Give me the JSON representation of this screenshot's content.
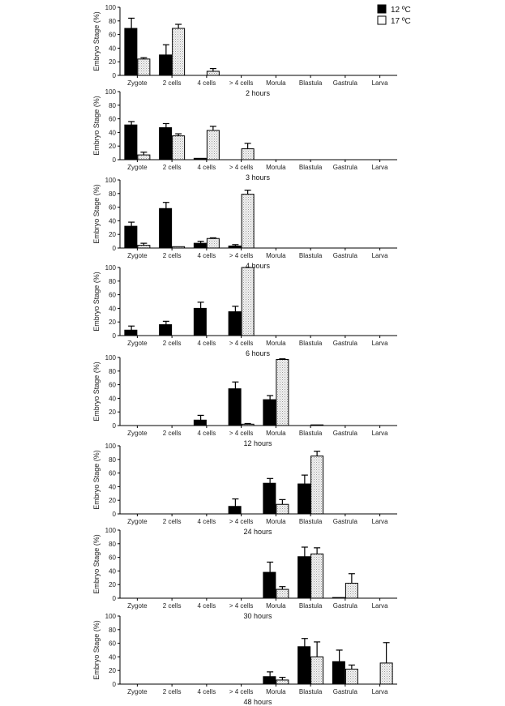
{
  "legend": {
    "series_12": "12 ºC",
    "series_17": "17 ºC"
  },
  "chart_data": {
    "type": "bar",
    "ylabel": "Embryo Stage (%)",
    "ylim": [
      0,
      100
    ],
    "yticks": [
      0,
      20,
      40,
      60,
      80,
      100
    ],
    "categories": [
      "Zygote",
      "2 cells",
      "4 cells",
      "> 4 cells",
      "Morula",
      "Blastula",
      "Gastrula",
      "Larva"
    ],
    "legend_position": "top-right",
    "series_colors": {
      "12 ºC": "#000000",
      "17 ºC": "#e6e6e6"
    },
    "panels": [
      {
        "title": "2 hours",
        "series": [
          {
            "name": "12 ºC",
            "values": [
              69,
              30,
              0,
              0,
              0,
              0,
              0,
              0
            ],
            "errors": [
              15,
              15,
              0,
              0,
              0,
              0,
              0,
              0
            ]
          },
          {
            "name": "17 ºC",
            "values": [
              24,
              69,
              6,
              0,
              0,
              0,
              0,
              0
            ],
            "errors": [
              2,
              6,
              4,
              0,
              0,
              0,
              0,
              0
            ]
          }
        ]
      },
      {
        "title": "3 hours",
        "series": [
          {
            "name": "12 ºC",
            "values": [
              51,
              47,
              2,
              0,
              0,
              0,
              0,
              0
            ],
            "errors": [
              5,
              6,
              0,
              0,
              0,
              0,
              0,
              0
            ]
          },
          {
            "name": "17 ºC",
            "values": [
              7,
              35,
              43,
              16,
              0,
              0,
              0,
              0
            ],
            "errors": [
              4,
              3,
              6,
              8,
              0,
              0,
              0,
              0
            ]
          }
        ]
      },
      {
        "title": "4 hours",
        "series": [
          {
            "name": "12 ºC",
            "values": [
              32,
              58,
              7,
              3,
              0,
              0,
              0,
              0
            ],
            "errors": [
              6,
              9,
              3,
              2,
              0,
              0,
              0,
              0
            ]
          },
          {
            "name": "17 ºC",
            "values": [
              4,
              2,
              14,
              79,
              0,
              0,
              0,
              0
            ],
            "errors": [
              3,
              0,
              1,
              6,
              0,
              0,
              0,
              0
            ]
          }
        ]
      },
      {
        "title": "6 hours",
        "series": [
          {
            "name": "12 ºC",
            "values": [
              8,
              16,
              40,
              35,
              0,
              0,
              0,
              0
            ],
            "errors": [
              6,
              5,
              9,
              8,
              0,
              0,
              0,
              0
            ]
          },
          {
            "name": "17 ºC",
            "values": [
              0,
              0,
              0,
              100,
              0,
              0,
              0,
              0
            ],
            "errors": [
              0,
              0,
              0,
              0,
              0,
              0,
              0,
              0
            ]
          }
        ]
      },
      {
        "title": "12 hours",
        "series": [
          {
            "name": "12 ºC",
            "values": [
              0,
              0,
              8,
              54,
              38,
              0,
              0,
              0
            ],
            "errors": [
              0,
              0,
              7,
              10,
              6,
              0,
              0,
              0
            ]
          },
          {
            "name": "17 ºC",
            "values": [
              0,
              0,
              0,
              2,
              97,
              1,
              0,
              0
            ],
            "errors": [
              0,
              0,
              0,
              1,
              1,
              0,
              0,
              0
            ]
          }
        ]
      },
      {
        "title": "24 hours",
        "series": [
          {
            "name": "12 ºC",
            "values": [
              0,
              0,
              0,
              11,
              45,
              44,
              0,
              0
            ],
            "errors": [
              0,
              0,
              0,
              11,
              7,
              13,
              0,
              0
            ]
          },
          {
            "name": "17 ºC",
            "values": [
              0,
              0,
              0,
              0,
              14,
              85,
              0,
              0
            ],
            "errors": [
              0,
              0,
              0,
              0,
              7,
              7,
              0,
              0
            ]
          }
        ]
      },
      {
        "title": "30 hours",
        "series": [
          {
            "name": "12 ºC",
            "values": [
              0,
              0,
              0,
              0,
              38,
              61,
              1,
              0
            ],
            "errors": [
              0,
              0,
              0,
              0,
              15,
              14,
              0,
              0
            ]
          },
          {
            "name": "17 ºC",
            "values": [
              0,
              0,
              0,
              0,
              13,
              65,
              22,
              0
            ],
            "errors": [
              0,
              0,
              0,
              0,
              4,
              9,
              14,
              0
            ]
          }
        ]
      },
      {
        "title": "48 hours",
        "series": [
          {
            "name": "12 ºC",
            "values": [
              0,
              0,
              0,
              0,
              11,
              55,
              33,
              0
            ],
            "errors": [
              0,
              0,
              0,
              0,
              7,
              12,
              17,
              0
            ]
          },
          {
            "name": "17 ºC",
            "values": [
              0,
              0,
              0,
              0,
              6,
              40,
              22,
              31
            ],
            "errors": [
              0,
              0,
              0,
              0,
              4,
              22,
              6,
              30
            ]
          }
        ]
      }
    ]
  }
}
